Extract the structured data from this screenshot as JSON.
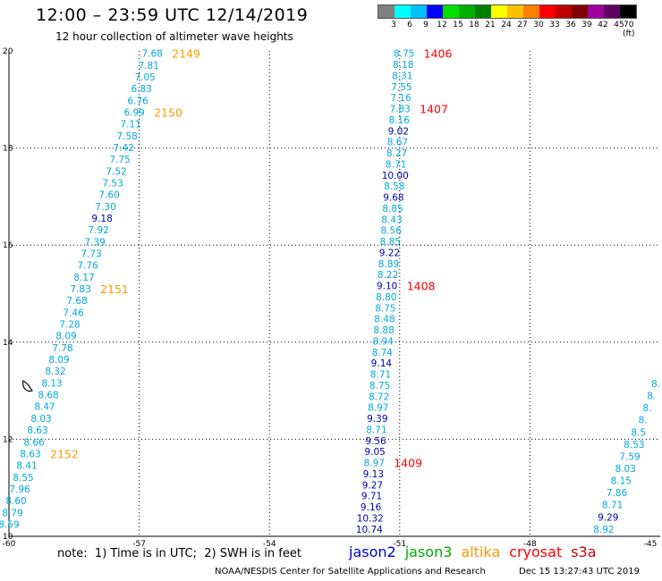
{
  "title": "12:00 – 23:59 UTC 12/14/2019",
  "subtitle": "12 hour collection of altimeter wave heights",
  "legend": {
    "ticks": [
      "3",
      "6",
      "9",
      "12",
      "15",
      "18",
      "21",
      "24",
      "27",
      "30",
      "33",
      "36",
      "39",
      "42",
      "45",
      "70 (ft)"
    ],
    "colors": [
      "#808080",
      "#00ffff",
      "#00c0ff",
      "#0000ff",
      "#00e000",
      "#00b000",
      "#008000",
      "#ffff00",
      "#ffc000",
      "#ff8000",
      "#ff0000",
      "#c00000",
      "#800000",
      "#a000a0",
      "#600060",
      "#000000"
    ]
  },
  "note": "note:  1) Time is in UTC;  2) SWH is in feet",
  "satellites": [
    {
      "name": "jason2",
      "color": "#0000cc"
    },
    {
      "name": "jason3",
      "color": "#00aa00"
    },
    {
      "name": "altika",
      "color": "#ff9900"
    },
    {
      "name": "cryosat",
      "color": "#ff0000"
    },
    {
      "name": "s3a",
      "color": "#cc0000"
    }
  ],
  "credit": "NOAA/NESDIS Center for Satellite Applications and Research",
  "timestamp": "Dec 15 13:27:43 UTC 2019",
  "chart_data": {
    "type": "scatter",
    "xlim": [
      -60,
      -45
    ],
    "ylim": [
      10,
      20
    ],
    "x_ticks": [
      -60,
      -57,
      -54,
      -51,
      -48,
      -45
    ],
    "x_tick_labels": [
      "-60",
      "-57",
      "-54",
      "-51",
      "-48",
      "-45"
    ],
    "y_ticks": [
      10,
      12,
      14,
      16,
      18,
      20
    ],
    "y_tick_labels": [
      "10",
      "12",
      "14",
      "16",
      "18",
      "20"
    ],
    "grid": true,
    "colors": {
      "light": "#00a8e0",
      "dark": "#0000b0",
      "orange": "#ff9900",
      "red": "#ff0000"
    },
    "tracks": [
      {
        "x_top": -56.7,
        "x_bottom": -60.0,
        "y_top": 19.95,
        "y_bottom": 10.25,
        "values": [
          "7.68",
          "7.81",
          "7.05",
          "6.83",
          "6.76",
          "6.99",
          "7.11",
          "7.58",
          "7.42",
          "7.75",
          "7.52",
          "7.53",
          "7.60",
          "7.30",
          "9.18",
          "7.92",
          "7.39",
          "7.73",
          "7.76",
          "8.17",
          "7.83",
          "7.68",
          "7.46",
          "7.28",
          "8.09",
          "7.78",
          "8.09",
          "8.32",
          "8.13",
          "8.68",
          "8.47",
          "8.03",
          "8.63",
          "8.66",
          "8.63",
          "8.41",
          "8.55",
          "7.96",
          "8.60",
          "8.79",
          "8.59"
        ],
        "dark": [
          "9.18"
        ],
        "times": [
          {
            "label": "2149",
            "index": 0,
            "color": "orange"
          },
          {
            "label": "2150",
            "index": 5,
            "color": "orange"
          },
          {
            "label": "2151",
            "index": 20,
            "color": "orange"
          },
          {
            "label": "2152",
            "index": 34,
            "color": "orange"
          }
        ]
      },
      {
        "x_top": -50.9,
        "x_bottom": -51.7,
        "y_top": 19.95,
        "y_bottom": 10.15,
        "values": [
          "8.75",
          "8.18",
          "8.31",
          "7.55",
          "7.16",
          "7.83",
          "8.16",
          "9.02",
          "8.67",
          "8.27",
          "8.71",
          "10.00",
          "8.58",
          "9.68",
          "8.85",
          "8.43",
          "8.56",
          "8.85",
          "9.22",
          "8.89",
          "8.22",
          "9.10",
          "8.80",
          "8.75",
          "8.48",
          "8.88",
          "8.94",
          "8.74",
          "9.14",
          "8.71",
          "8.75",
          "8.72",
          "8.97",
          "9.39",
          "8.71",
          "9.56",
          "9.05",
          "8.97",
          "9.13",
          "9.27",
          "9.71",
          "9.16",
          "10.32",
          "10.74"
        ],
        "dark": [
          "9.02",
          "10.00",
          "9.68",
          "9.22",
          "9.10",
          "9.14",
          "9.39",
          "9.56",
          "9.05",
          "9.13",
          "9.27",
          "9.71",
          "9.16",
          "10.32",
          "10.74"
        ],
        "times": [
          {
            "label": "1406",
            "index": 0,
            "color": "red"
          },
          {
            "label": "1407",
            "index": 5,
            "color": "red"
          },
          {
            "label": "1408",
            "index": 21,
            "color": "red"
          },
          {
            "label": "1409",
            "index": 37,
            "color": "red"
          }
        ]
      },
      {
        "x_top": -45.1,
        "x_bottom": -46.3,
        "y_top": 13.15,
        "y_bottom": 10.15,
        "values": [
          "8.",
          "8.",
          "8.",
          "8.",
          "8.5",
          "8.53",
          "7.59",
          "8.03",
          "8.15",
          "7.86",
          "8.71",
          "9.29",
          "8.92"
        ],
        "dark": [
          "9.29"
        ],
        "times": []
      }
    ]
  }
}
